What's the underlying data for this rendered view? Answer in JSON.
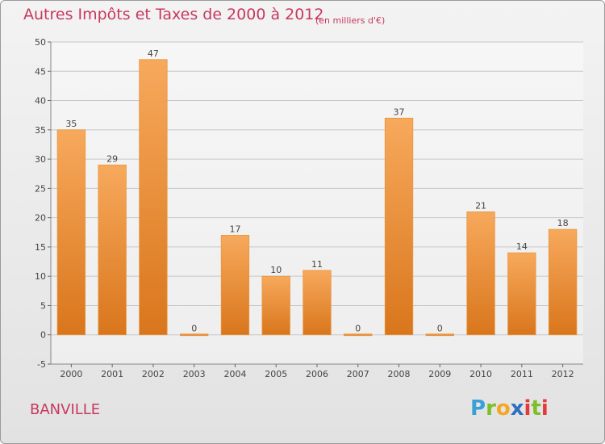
{
  "header": {
    "title": "Autres Impôts et Taxes de 2000 à 2012",
    "subtitle": "(en milliers d'€)"
  },
  "footer": {
    "commune": "BANVILLE",
    "logo_letters": [
      "P",
      "r",
      "o",
      "x",
      "i",
      "t",
      "i"
    ]
  },
  "colors": {
    "title": "#c8385f",
    "bar_top": "#f7a95c",
    "bar_bottom": "#d9761c",
    "grid": "#c8c8c8"
  },
  "chart_data": {
    "type": "bar",
    "title": "Autres Impôts et Taxes de 2000 à 2012",
    "xlabel": "",
    "ylabel": "",
    "ylim": [
      -5,
      50
    ],
    "yticks": [
      -5,
      0,
      5,
      10,
      15,
      20,
      25,
      30,
      35,
      40,
      45,
      50
    ],
    "grid": true,
    "categories": [
      "2000",
      "2001",
      "2002",
      "2003",
      "2004",
      "2005",
      "2006",
      "2007",
      "2008",
      "2009",
      "2010",
      "2011",
      "2012"
    ],
    "values": [
      35,
      29,
      47,
      0,
      17,
      10,
      11,
      0,
      37,
      0,
      21,
      14,
      18
    ]
  }
}
